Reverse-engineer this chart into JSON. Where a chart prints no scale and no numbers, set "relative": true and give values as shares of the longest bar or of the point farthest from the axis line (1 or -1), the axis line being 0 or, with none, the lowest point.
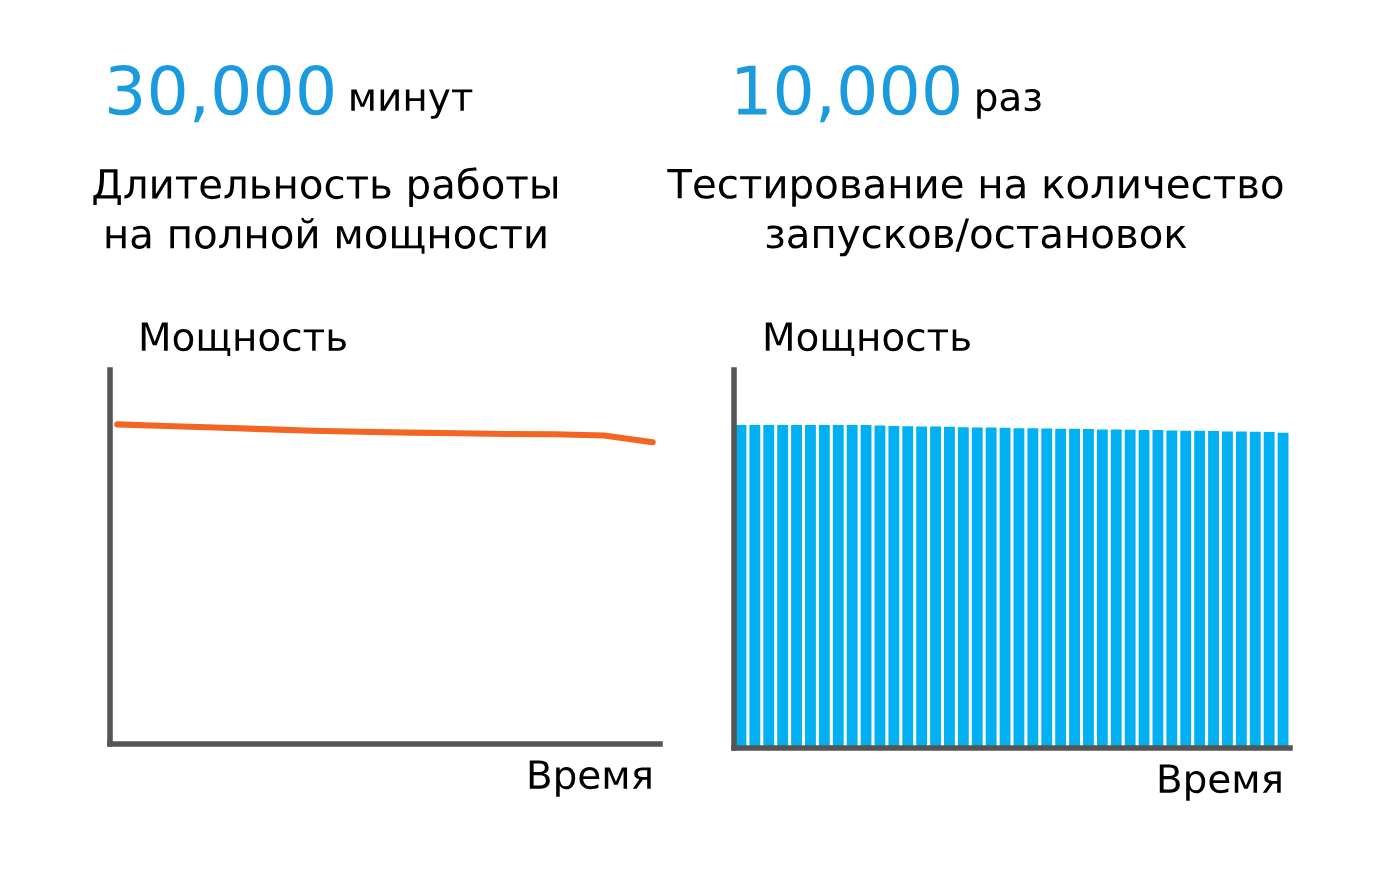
{
  "chart_data": [
    {
      "type": "line",
      "relative": true,
      "title": "30,000",
      "annotations": [
        "минут"
      ],
      "subtitle": "Длительность работы\nна полной мощности",
      "ylabel": "Мощность",
      "xlabel": "Время",
      "categories": [
        null,
        null,
        null,
        null,
        null,
        null,
        null,
        null,
        null,
        null,
        null,
        null
      ],
      "series": [
        {
          "color": "#f26522",
          "values": [
            1,
            0.995,
            0.99,
            0.985,
            0.98,
            0.977,
            0.974,
            0.972,
            0.97,
            0.969,
            0.965,
            0.944
          ]
        }
      ]
    },
    {
      "type": "bar",
      "relative": true,
      "title": "10,000",
      "annotations": [
        "раз"
      ],
      "subtitle": "Тестирование на количество\nзапусков/остановок",
      "ylabel": "Мощность",
      "xlabel": "Время",
      "categories": [
        null,
        null,
        null,
        null,
        null,
        null,
        null,
        null,
        null,
        null,
        null,
        null,
        null,
        null,
        null,
        null,
        null,
        null,
        null,
        null,
        null,
        null,
        null,
        null,
        null,
        null,
        null,
        null,
        null,
        null,
        null,
        null,
        null,
        null,
        null,
        null,
        null,
        null,
        null,
        null
      ],
      "series": [
        {
          "color": "#00b0f0",
          "values": [
            1,
            1,
            1,
            1,
            1,
            1,
            1,
            1,
            1,
            1,
            0.998,
            0.997,
            0.996,
            0.995,
            0.995,
            0.994,
            0.993,
            0.992,
            0.992,
            0.991,
            0.99,
            0.99,
            0.989,
            0.988,
            0.988,
            0.987,
            0.986,
            0.986,
            0.985,
            0.984,
            0.984,
            0.983,
            0.982,
            0.982,
            0.981,
            0.98,
            0.98,
            0.979,
            0.978,
            0.976
          ]
        }
      ]
    }
  ]
}
